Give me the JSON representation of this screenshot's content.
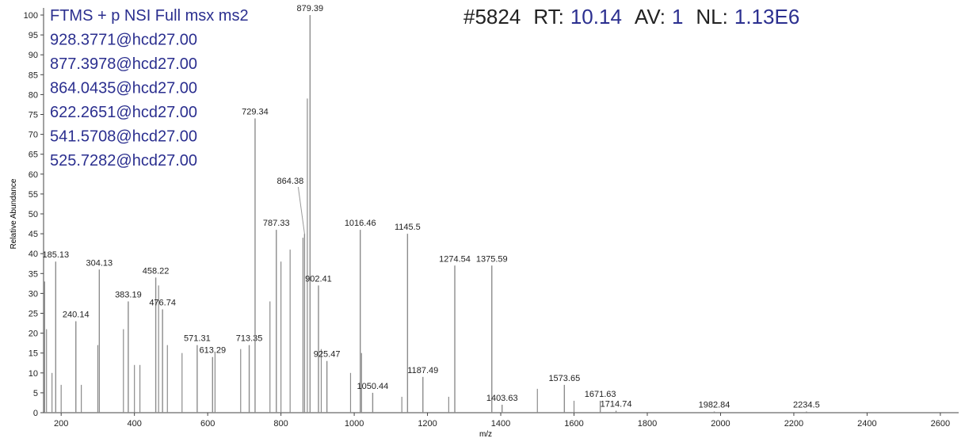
{
  "chart_data": {
    "type": "stick",
    "title_lines": [
      "FTMS + p NSI Full msx ms2",
      "928.3771@hcd27.00",
      "877.3978@hcd27.00",
      "864.0435@hcd27.00",
      "622.2651@hcd27.00",
      "541.5708@hcd27.00",
      "525.7282@hcd27.00"
    ],
    "scan": "#5824",
    "rt_label": "RT:",
    "rt": "10.14",
    "av_label": "AV:",
    "av": "1",
    "nl_label": "NL:",
    "nl": "1.13E6",
    "xlabel": "m/z",
    "ylabel": "Relative Abundance",
    "x": [
      185.13,
      240.14,
      304.13,
      383.19,
      458.22,
      476.74,
      571.31,
      613.29,
      713.35,
      729.34,
      787.33,
      864.38,
      879.39,
      902.41,
      925.47,
      1016.46,
      1050.44,
      1145.5,
      1187.49,
      1274.54,
      1375.59,
      1403.63,
      1573.65,
      1671.63,
      1714.74,
      1982.84,
      2234.5
    ],
    "values": [
      38,
      23,
      36,
      28,
      34,
      26,
      17,
      14,
      17,
      74,
      46,
      45,
      100,
      32,
      13,
      46,
      5,
      45,
      9,
      37,
      37,
      2,
      7,
      3,
      0.5,
      0.3,
      0.3
    ],
    "minor_x": [
      155,
      160,
      175,
      200,
      255,
      300,
      370,
      400,
      415,
      466,
      490,
      530,
      620,
      690,
      770,
      800,
      825,
      860,
      872,
      910,
      990,
      1020,
      1130,
      1258,
      1500,
      1600
    ],
    "minor_values": [
      33,
      21,
      10,
      7,
      7,
      17,
      21,
      12,
      12,
      32,
      17,
      15,
      15,
      16,
      28,
      38,
      41,
      44,
      79,
      16,
      10,
      15,
      4,
      4,
      6,
      3
    ],
    "color": "#8c8c8c",
    "xlim": [
      152,
      2650
    ],
    "ylim": [
      0,
      100
    ],
    "xticks": [
      200,
      400,
      600,
      800,
      1000,
      1200,
      1400,
      1600,
      1800,
      2000,
      2200,
      2400,
      2600
    ],
    "yticks": [
      0,
      5,
      10,
      15,
      20,
      25,
      30,
      35,
      40,
      45,
      50,
      55,
      60,
      65,
      70,
      75,
      80,
      85,
      90,
      95,
      100
    ]
  }
}
